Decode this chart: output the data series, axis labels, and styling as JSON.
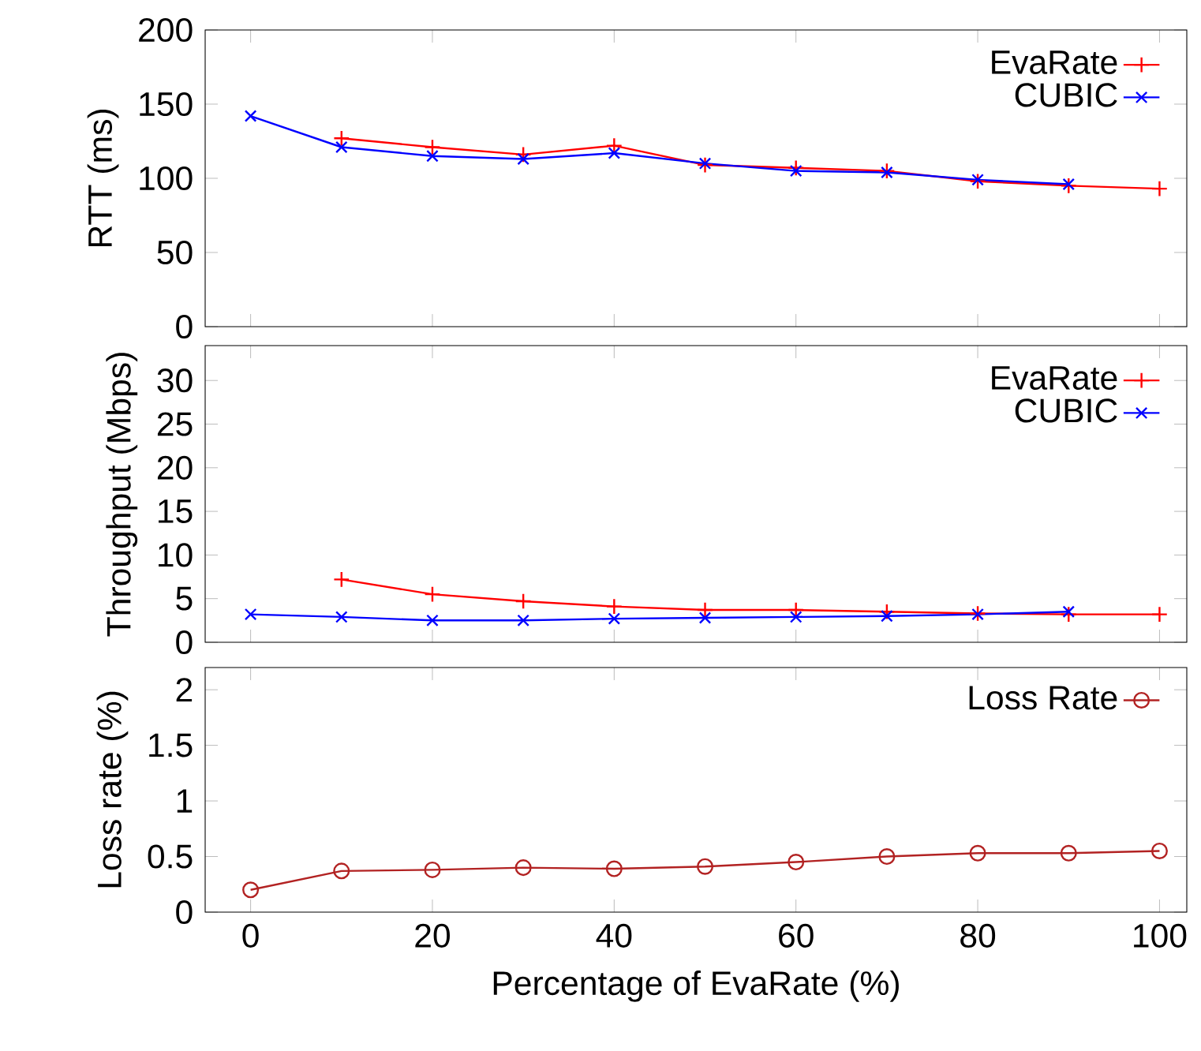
{
  "chart_data": [
    {
      "type": "line",
      "ylabel": "RTT (ms)",
      "xlim": [
        -5,
        103
      ],
      "xticks": [
        0,
        20,
        40,
        60,
        80,
        100
      ],
      "ylim": [
        0,
        200
      ],
      "yticks": [
        0,
        50,
        100,
        150,
        200
      ],
      "tick_labels": "y",
      "legend": "top right",
      "grid": false,
      "series": [
        {
          "name": "EvaRate",
          "color": "#ff0000",
          "marker": "plus",
          "x": [
            10,
            20,
            30,
            40,
            50,
            60,
            70,
            80,
            90,
            100
          ],
          "values": [
            127,
            121,
            116,
            122,
            109,
            107,
            105,
            98,
            95,
            93
          ]
        },
        {
          "name": "CUBIC",
          "color": "#0000ff",
          "marker": "cross",
          "x": [
            0,
            10,
            20,
            30,
            40,
            50,
            60,
            70,
            80,
            90
          ],
          "values": [
            142,
            121,
            115,
            113,
            117,
            110,
            105,
            104,
            99,
            96
          ]
        }
      ]
    },
    {
      "type": "line",
      "ylabel": "Throughput (Mbps)",
      "xlim": [
        -5,
        103
      ],
      "xticks": [
        0,
        20,
        40,
        60,
        80,
        100
      ],
      "ylim": [
        0,
        34
      ],
      "yticks": [
        0,
        5,
        10,
        15,
        20,
        25,
        30
      ],
      "tick_labels": "y",
      "legend": "top right",
      "grid": false,
      "series": [
        {
          "name": "EvaRate",
          "color": "#ff0000",
          "marker": "plus",
          "x": [
            10,
            20,
            30,
            40,
            50,
            60,
            70,
            80,
            90,
            100
          ],
          "values": [
            7.2,
            5.5,
            4.7,
            4.1,
            3.7,
            3.7,
            3.5,
            3.3,
            3.2,
            3.2
          ]
        },
        {
          "name": "CUBIC",
          "color": "#0000ff",
          "marker": "cross",
          "x": [
            0,
            10,
            20,
            30,
            40,
            50,
            60,
            70,
            80,
            90
          ],
          "values": [
            3.2,
            2.9,
            2.5,
            2.5,
            2.7,
            2.8,
            2.9,
            3.0,
            3.2,
            3.5
          ]
        }
      ]
    },
    {
      "type": "line",
      "ylabel": "Loss rate (%)",
      "xlabel": "Percentage of EvaRate (%)",
      "xlim": [
        -5,
        103
      ],
      "xticks": [
        0,
        20,
        40,
        60,
        80,
        100
      ],
      "ylim": [
        0,
        2.2
      ],
      "yticks": [
        0,
        0.5,
        1,
        1.5,
        2
      ],
      "legend": "top right",
      "grid": false,
      "series": [
        {
          "name": "Loss Rate",
          "color": "#b22222",
          "marker": "circle",
          "x": [
            0,
            10,
            20,
            30,
            40,
            50,
            60,
            70,
            80,
            90,
            100
          ],
          "values": [
            0.2,
            0.37,
            0.38,
            0.4,
            0.39,
            0.41,
            0.45,
            0.5,
            0.53,
            0.53,
            0.55
          ]
        }
      ]
    }
  ]
}
